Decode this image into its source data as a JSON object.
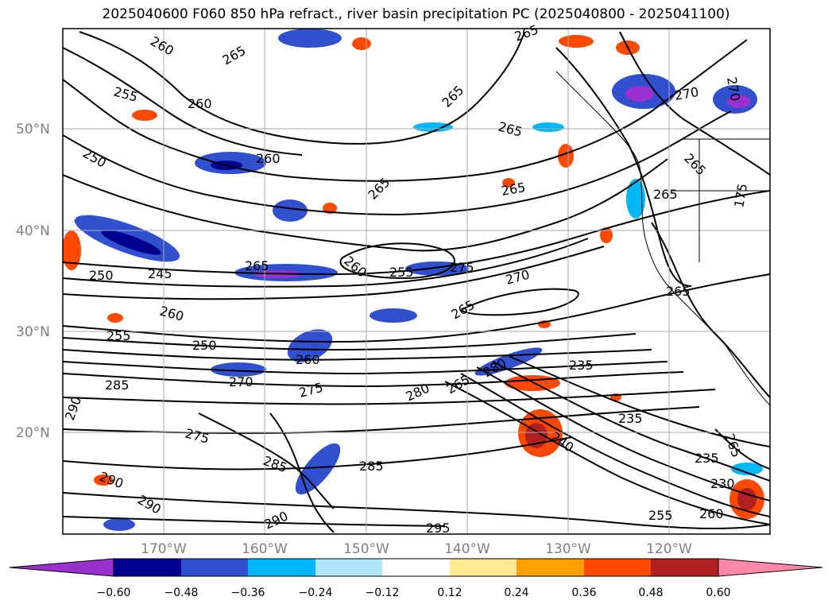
{
  "title": "2025040600 F060 850 hPa refract., river basin precipitation PC (2025040800 - 2025041100)",
  "map": {
    "lat_labels": [
      "50°N",
      "40°N",
      "30°N",
      "20°N"
    ],
    "lon_labels": [
      "170°W",
      "160°W",
      "150°W",
      "140°W",
      "130°W",
      "120°W"
    ],
    "contour_labels": [
      "260",
      "265",
      "255",
      "260",
      "250",
      "260",
      "265",
      "265",
      "265",
      "265",
      "270",
      "265",
      "265",
      "270",
      "265",
      "175",
      "250",
      "245",
      "265",
      "260",
      "255",
      "275",
      "270",
      "265",
      "260",
      "255",
      "250",
      "260",
      "270",
      "275",
      "285",
      "280",
      "265",
      "280",
      "235",
      "235",
      "240",
      "235",
      "230",
      "290",
      "275",
      "285",
      "285",
      "290",
      "290",
      "290",
      "295",
      "255",
      "260",
      "265",
      "265"
    ]
  },
  "colorbar": {
    "ticks": [
      "−0.60",
      "−0.48",
      "−0.36",
      "−0.24",
      "−0.12",
      "0.12",
      "0.24",
      "0.36",
      "0.48",
      "0.60"
    ],
    "colors": [
      "#9b30d0",
      "#000090",
      "#3050d0",
      "#00b8f8",
      "#b0e4fa",
      "#ffffff",
      "#ffe890",
      "#ffa000",
      "#ff4800",
      "#b02020",
      "#ff88aa"
    ]
  }
}
